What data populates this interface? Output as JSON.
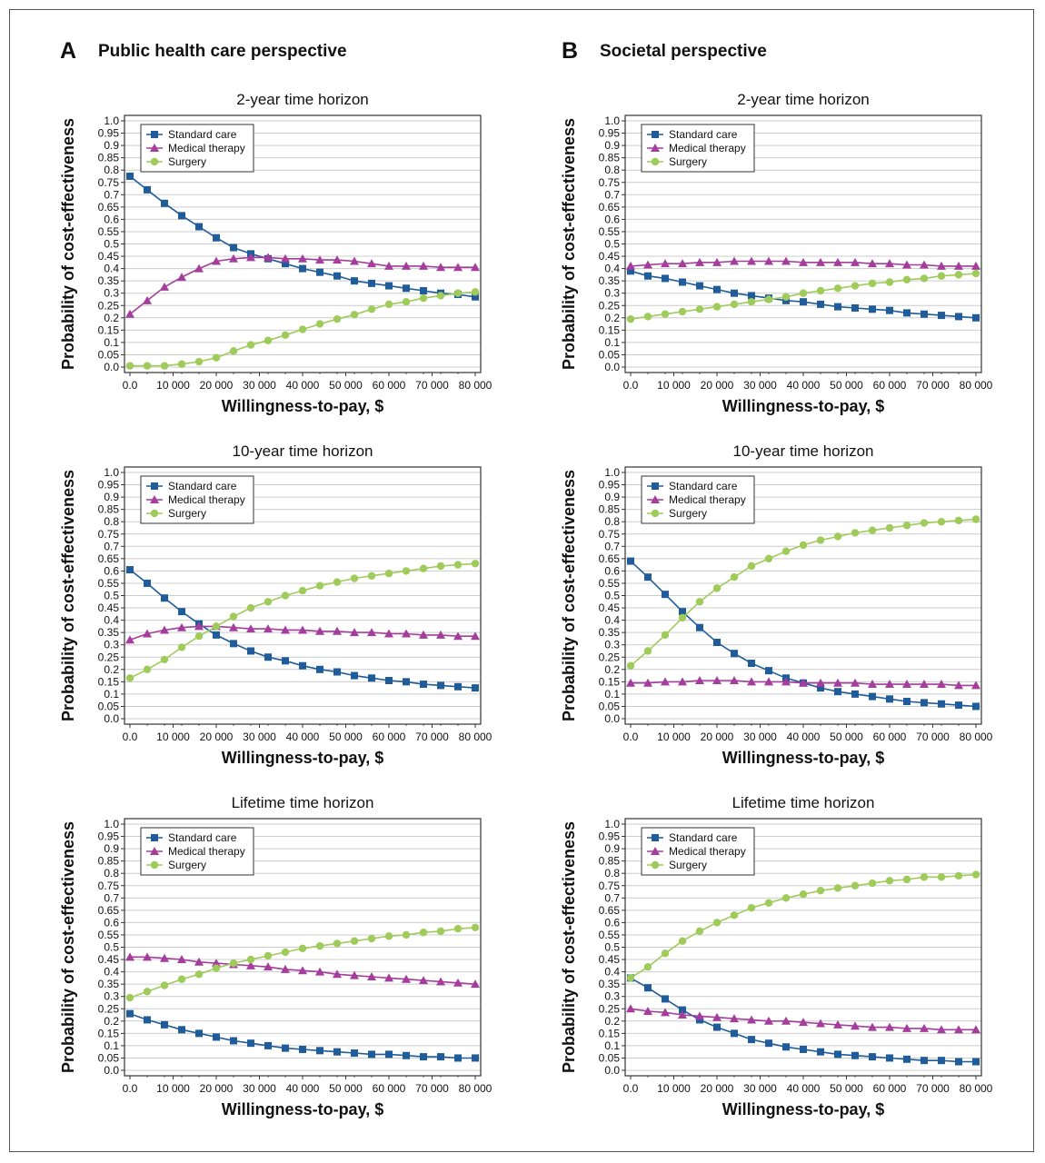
{
  "panels": [
    {
      "letter": "A",
      "title": "Public health care perspective"
    },
    {
      "letter": "B",
      "title": "Societal perspective"
    }
  ],
  "colors": {
    "standard": "#1f5c99",
    "medical": "#a43d9c",
    "surgery": "#9fcb5a",
    "grid": "#cccccc"
  },
  "chart_data": [
    {
      "type": "line",
      "title": "2-year time horizon",
      "xlabel": "Willingness-to-pay, $",
      "ylabel": "Probability of cost-effectiveness",
      "xlim": [
        0,
        80000
      ],
      "ylim": [
        0,
        1.0
      ],
      "grid": true,
      "legend": "top-left",
      "x_ticks": [
        "0.0",
        "10 000",
        "20 000",
        "30 000",
        "40 000",
        "50 000",
        "60 000",
        "70 000",
        "80 000"
      ],
      "y_ticks": [
        "0.0",
        "0.05",
        "0.1",
        "0.15",
        "0.2",
        "0.25",
        "0.3",
        "0.35",
        "0.4",
        "0.45",
        "0.5",
        "0.55",
        "0.6",
        "0.65",
        "0.7",
        "0.75",
        "0.8",
        "0.85",
        "0.9",
        "0.95",
        "1.0"
      ],
      "x": [
        0,
        4000,
        8000,
        12000,
        16000,
        20000,
        24000,
        28000,
        32000,
        36000,
        40000,
        44000,
        48000,
        52000,
        56000,
        60000,
        64000,
        68000,
        72000,
        76000,
        80000
      ],
      "series": [
        {
          "name": "Standard care",
          "marker": "square",
          "values": [
            0.775,
            0.72,
            0.665,
            0.615,
            0.57,
            0.525,
            0.485,
            0.46,
            0.44,
            0.42,
            0.4,
            0.385,
            0.37,
            0.35,
            0.34,
            0.33,
            0.32,
            0.31,
            0.3,
            0.295,
            0.285
          ]
        },
        {
          "name": "Medical therapy",
          "marker": "triangle",
          "values": [
            0.215,
            0.27,
            0.325,
            0.365,
            0.4,
            0.43,
            0.44,
            0.445,
            0.445,
            0.44,
            0.44,
            0.435,
            0.435,
            0.43,
            0.42,
            0.41,
            0.41,
            0.41,
            0.405,
            0.405,
            0.405
          ]
        },
        {
          "name": "Surgery",
          "marker": "circle",
          "values": [
            0.005,
            0.005,
            0.005,
            0.012,
            0.022,
            0.038,
            0.065,
            0.09,
            0.108,
            0.13,
            0.153,
            0.175,
            0.195,
            0.213,
            0.235,
            0.255,
            0.265,
            0.28,
            0.29,
            0.3,
            0.305
          ]
        }
      ]
    },
    {
      "type": "line",
      "title": "2-year time horizon",
      "xlabel": "Willingness-to-pay, $",
      "ylabel": "Probability of cost-effectiveness",
      "xlim": [
        0,
        80000
      ],
      "ylim": [
        0,
        1.0
      ],
      "grid": true,
      "legend": "top-left",
      "x_ticks": [
        "0.0",
        "10 000",
        "20 000",
        "30 000",
        "40 000",
        "50 000",
        "60 000",
        "70 000",
        "80 000"
      ],
      "y_ticks": [
        "0.0",
        "0.05",
        "0.1",
        "0.15",
        "0.2",
        "0.25",
        "0.3",
        "0.35",
        "0.4",
        "0.45",
        "0.5",
        "0.55",
        "0.6",
        "0.65",
        "0.7",
        "0.75",
        "0.8",
        "0.85",
        "0.9",
        "0.95",
        "1.0"
      ],
      "x": [
        0,
        4000,
        8000,
        12000,
        16000,
        20000,
        24000,
        28000,
        32000,
        36000,
        40000,
        44000,
        48000,
        52000,
        56000,
        60000,
        64000,
        68000,
        72000,
        76000,
        80000
      ],
      "series": [
        {
          "name": "Standard care",
          "marker": "square",
          "values": [
            0.39,
            0.37,
            0.36,
            0.345,
            0.33,
            0.315,
            0.3,
            0.29,
            0.28,
            0.27,
            0.265,
            0.255,
            0.245,
            0.24,
            0.235,
            0.23,
            0.22,
            0.215,
            0.21,
            0.205,
            0.2
          ]
        },
        {
          "name": "Medical therapy",
          "marker": "triangle",
          "values": [
            0.41,
            0.415,
            0.42,
            0.42,
            0.425,
            0.425,
            0.43,
            0.43,
            0.43,
            0.43,
            0.425,
            0.425,
            0.425,
            0.425,
            0.42,
            0.42,
            0.415,
            0.415,
            0.41,
            0.41,
            0.41
          ]
        },
        {
          "name": "Surgery",
          "marker": "circle",
          "values": [
            0.195,
            0.205,
            0.215,
            0.225,
            0.235,
            0.245,
            0.255,
            0.265,
            0.275,
            0.285,
            0.3,
            0.31,
            0.32,
            0.33,
            0.34,
            0.345,
            0.355,
            0.36,
            0.37,
            0.375,
            0.38
          ]
        }
      ]
    },
    {
      "type": "line",
      "title": "10-year time horizon",
      "xlabel": "Willingness-to-pay, $",
      "ylabel": "Probability of cost-effectiveness",
      "xlim": [
        0,
        80000
      ],
      "ylim": [
        0,
        1.0
      ],
      "grid": true,
      "legend": "top-left",
      "x_ticks": [
        "0.0",
        "10 000",
        "20 000",
        "30 000",
        "40 000",
        "50 000",
        "60 000",
        "70 000",
        "80 000"
      ],
      "y_ticks": [
        "0.0",
        "0.05",
        "0.1",
        "0.15",
        "0.2",
        "0.25",
        "0.3",
        "0.35",
        "0.4",
        "0.45",
        "0.5",
        "0.55",
        "0.6",
        "0.65",
        "0.7",
        "0.75",
        "0.8",
        "0.85",
        "0.9",
        "0.95",
        "1.0"
      ],
      "x": [
        0,
        4000,
        8000,
        12000,
        16000,
        20000,
        24000,
        28000,
        32000,
        36000,
        40000,
        44000,
        48000,
        52000,
        56000,
        60000,
        64000,
        68000,
        72000,
        76000,
        80000
      ],
      "series": [
        {
          "name": "Standard care",
          "marker": "square",
          "values": [
            0.605,
            0.55,
            0.49,
            0.435,
            0.385,
            0.34,
            0.305,
            0.275,
            0.25,
            0.235,
            0.215,
            0.2,
            0.19,
            0.175,
            0.165,
            0.155,
            0.15,
            0.14,
            0.135,
            0.13,
            0.125
          ]
        },
        {
          "name": "Medical therapy",
          "marker": "triangle",
          "values": [
            0.32,
            0.345,
            0.36,
            0.37,
            0.375,
            0.375,
            0.37,
            0.365,
            0.365,
            0.36,
            0.36,
            0.355,
            0.355,
            0.35,
            0.35,
            0.345,
            0.345,
            0.34,
            0.34,
            0.335,
            0.335
          ]
        },
        {
          "name": "Surgery",
          "marker": "circle",
          "values": [
            0.165,
            0.2,
            0.24,
            0.29,
            0.335,
            0.375,
            0.415,
            0.45,
            0.475,
            0.5,
            0.52,
            0.54,
            0.555,
            0.57,
            0.58,
            0.59,
            0.6,
            0.61,
            0.62,
            0.625,
            0.63
          ]
        }
      ]
    },
    {
      "type": "line",
      "title": "10-year time horizon",
      "xlabel": "Willingness-to-pay, $",
      "ylabel": "Probability of cost-effectiveness",
      "xlim": [
        0,
        80000
      ],
      "ylim": [
        0,
        1.0
      ],
      "grid": true,
      "legend": "top-left",
      "x_ticks": [
        "0.0",
        "10 000",
        "20 000",
        "30 000",
        "40 000",
        "50 000",
        "60 000",
        "70 000",
        "80 000"
      ],
      "y_ticks": [
        "0.0",
        "0.05",
        "0.1",
        "0.15",
        "0.2",
        "0.25",
        "0.3",
        "0.35",
        "0.4",
        "0.45",
        "0.5",
        "0.55",
        "0.6",
        "0.65",
        "0.7",
        "0.75",
        "0.8",
        "0.85",
        "0.9",
        "0.95",
        "1.0"
      ],
      "x": [
        0,
        4000,
        8000,
        12000,
        16000,
        20000,
        24000,
        28000,
        32000,
        36000,
        40000,
        44000,
        48000,
        52000,
        56000,
        60000,
        64000,
        68000,
        72000,
        76000,
        80000
      ],
      "series": [
        {
          "name": "Standard care",
          "marker": "square",
          "values": [
            0.64,
            0.575,
            0.505,
            0.435,
            0.37,
            0.31,
            0.265,
            0.225,
            0.195,
            0.165,
            0.145,
            0.125,
            0.11,
            0.1,
            0.09,
            0.08,
            0.07,
            0.065,
            0.06,
            0.055,
            0.05
          ]
        },
        {
          "name": "Medical therapy",
          "marker": "triangle",
          "values": [
            0.145,
            0.145,
            0.15,
            0.15,
            0.155,
            0.155,
            0.155,
            0.15,
            0.15,
            0.15,
            0.145,
            0.145,
            0.145,
            0.145,
            0.14,
            0.14,
            0.14,
            0.14,
            0.14,
            0.135,
            0.135
          ]
        },
        {
          "name": "Surgery",
          "marker": "circle",
          "values": [
            0.215,
            0.275,
            0.34,
            0.41,
            0.475,
            0.53,
            0.575,
            0.62,
            0.65,
            0.68,
            0.705,
            0.725,
            0.74,
            0.755,
            0.765,
            0.775,
            0.785,
            0.795,
            0.8,
            0.805,
            0.81
          ]
        }
      ]
    },
    {
      "type": "line",
      "title": "Lifetime time horizon",
      "xlabel": "Willingness-to-pay, $",
      "ylabel": "Probability of cost-effectiveness",
      "xlim": [
        0,
        80000
      ],
      "ylim": [
        0,
        1.0
      ],
      "grid": true,
      "legend": "top-left",
      "x_ticks": [
        "0.0",
        "10 000",
        "20 000",
        "30 000",
        "40 000",
        "50 000",
        "60 000",
        "70 000",
        "80 000"
      ],
      "y_ticks": [
        "0.0",
        "0.05",
        "0.1",
        "0.15",
        "0.2",
        "0.25",
        "0.3",
        "0.35",
        "0.4",
        "0.45",
        "0.5",
        "0.55",
        "0.6",
        "0.65",
        "0.7",
        "0.75",
        "0.8",
        "0.85",
        "0.9",
        "0.95",
        "1.0"
      ],
      "x": [
        0,
        4000,
        8000,
        12000,
        16000,
        20000,
        24000,
        28000,
        32000,
        36000,
        40000,
        44000,
        48000,
        52000,
        56000,
        60000,
        64000,
        68000,
        72000,
        76000,
        80000
      ],
      "series": [
        {
          "name": "Standard care",
          "marker": "square",
          "values": [
            0.23,
            0.205,
            0.185,
            0.165,
            0.15,
            0.135,
            0.12,
            0.11,
            0.1,
            0.09,
            0.085,
            0.08,
            0.075,
            0.07,
            0.065,
            0.065,
            0.06,
            0.055,
            0.055,
            0.05,
            0.05
          ]
        },
        {
          "name": "Medical therapy",
          "marker": "triangle",
          "values": [
            0.46,
            0.46,
            0.455,
            0.45,
            0.44,
            0.435,
            0.43,
            0.425,
            0.42,
            0.41,
            0.405,
            0.4,
            0.39,
            0.385,
            0.38,
            0.375,
            0.37,
            0.365,
            0.36,
            0.355,
            0.35
          ]
        },
        {
          "name": "Surgery",
          "marker": "circle",
          "values": [
            0.295,
            0.32,
            0.345,
            0.37,
            0.39,
            0.415,
            0.435,
            0.45,
            0.465,
            0.48,
            0.495,
            0.505,
            0.515,
            0.525,
            0.535,
            0.545,
            0.55,
            0.56,
            0.565,
            0.575,
            0.58
          ]
        }
      ]
    },
    {
      "type": "line",
      "title": "Lifetime time horizon",
      "xlabel": "Willingness-to-pay, $",
      "ylabel": "Probability of cost-effectiveness",
      "xlim": [
        0,
        80000
      ],
      "ylim": [
        0,
        1.0
      ],
      "grid": true,
      "legend": "top-left",
      "x_ticks": [
        "0.0",
        "10 000",
        "20 000",
        "30 000",
        "40 000",
        "50 000",
        "60 000",
        "70 000",
        "80 000"
      ],
      "y_ticks": [
        "0.0",
        "0.05",
        "0.1",
        "0.15",
        "0.2",
        "0.25",
        "0.3",
        "0.35",
        "0.4",
        "0.45",
        "0.5",
        "0.55",
        "0.6",
        "0.65",
        "0.7",
        "0.75",
        "0.8",
        "0.85",
        "0.9",
        "0.95",
        "1.0"
      ],
      "x": [
        0,
        4000,
        8000,
        12000,
        16000,
        20000,
        24000,
        28000,
        32000,
        36000,
        40000,
        44000,
        48000,
        52000,
        56000,
        60000,
        64000,
        68000,
        72000,
        76000,
        80000
      ],
      "series": [
        {
          "name": "Standard care",
          "marker": "square",
          "values": [
            0.375,
            0.335,
            0.29,
            0.245,
            0.205,
            0.175,
            0.15,
            0.125,
            0.11,
            0.095,
            0.085,
            0.075,
            0.065,
            0.06,
            0.055,
            0.05,
            0.045,
            0.04,
            0.04,
            0.035,
            0.035
          ]
        },
        {
          "name": "Medical therapy",
          "marker": "triangle",
          "values": [
            0.25,
            0.24,
            0.235,
            0.225,
            0.22,
            0.215,
            0.21,
            0.205,
            0.2,
            0.2,
            0.195,
            0.19,
            0.185,
            0.18,
            0.175,
            0.175,
            0.17,
            0.17,
            0.165,
            0.165,
            0.165
          ]
        },
        {
          "name": "Surgery",
          "marker": "circle",
          "values": [
            0.375,
            0.42,
            0.475,
            0.525,
            0.565,
            0.6,
            0.63,
            0.66,
            0.68,
            0.7,
            0.715,
            0.73,
            0.74,
            0.75,
            0.76,
            0.77,
            0.775,
            0.785,
            0.785,
            0.79,
            0.795
          ]
        }
      ]
    }
  ]
}
